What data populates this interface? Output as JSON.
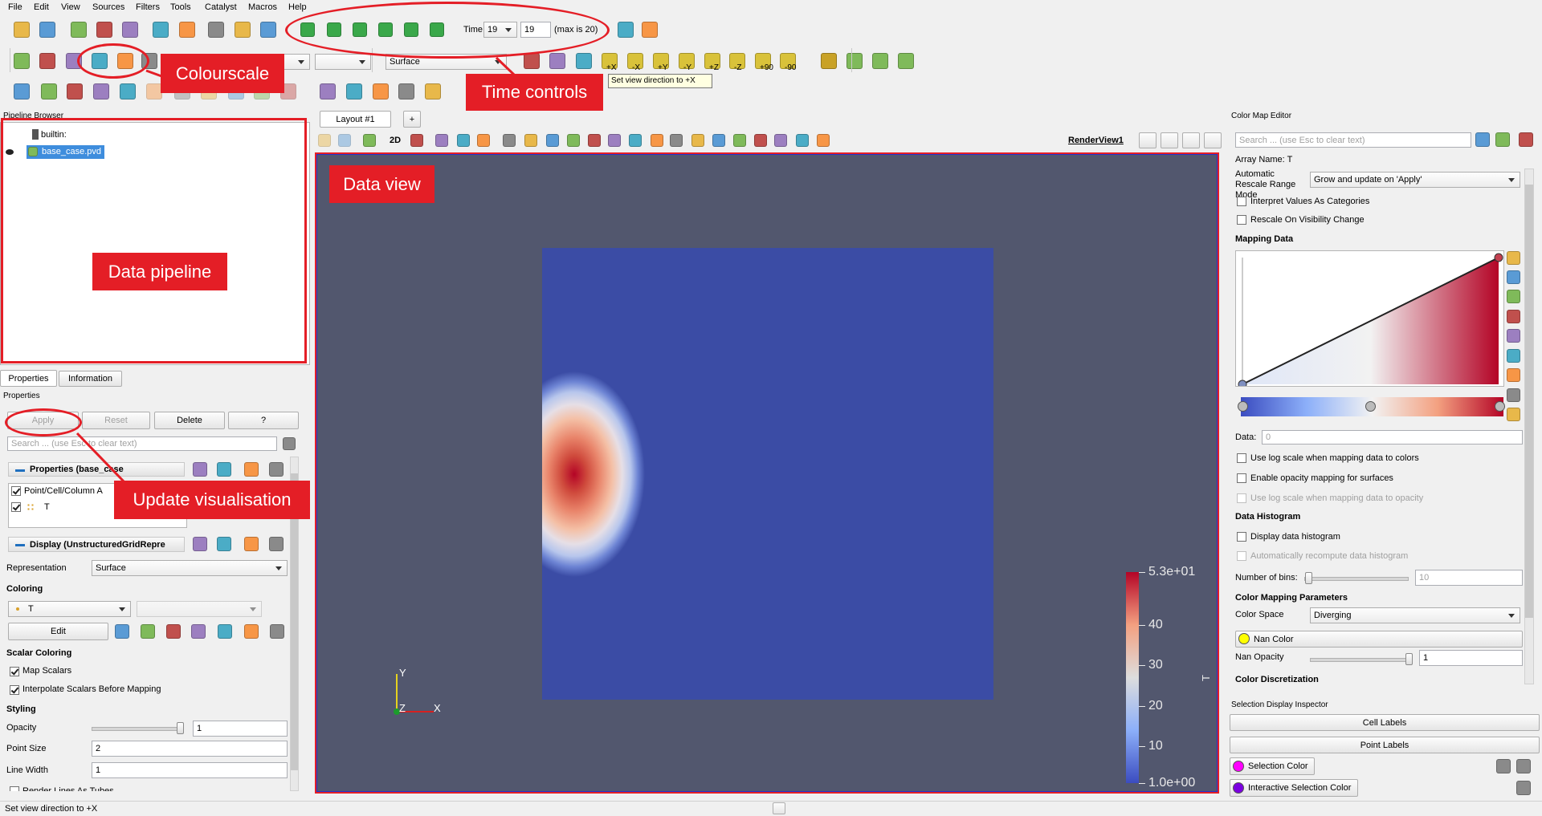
{
  "menu": [
    "File",
    "Edit",
    "View",
    "Sources",
    "Filters",
    "Tools",
    "Catalyst",
    "Macros",
    "Help"
  ],
  "toolbar": {
    "time_label": "Time:",
    "time_index": "19",
    "time_value": "19",
    "time_max": "(max is 20)",
    "representation": "Surface",
    "view_directions": [
      "+X",
      "-X",
      "+Y",
      "-Y",
      "+Z",
      "-Z",
      "+90",
      "-90"
    ],
    "tooltip": "Set view direction to +X"
  },
  "annotations": {
    "colourscale": "Colourscale",
    "time_controls": "Time controls",
    "data_view": "Data view",
    "data_pipeline": "Data pipeline",
    "update": "Update visualisation"
  },
  "pipeline_browser": {
    "title": "Pipeline Browser",
    "items": [
      "builtin:",
      "base_case.pvd"
    ]
  },
  "panel_tabs": [
    "Properties",
    "Information"
  ],
  "properties": {
    "title": "Properties",
    "buttons": [
      "Apply",
      "Reset",
      "Delete",
      "?"
    ],
    "search": "Search ... (use Esc to clear text)",
    "section": "Properties (base_case",
    "arrays_header": "Point/Cell/Column A",
    "array": "T",
    "display_section": "Display (UnstructuredGridRepre",
    "representation_label": "Representation",
    "representation": "Surface",
    "coloring_label": "Coloring",
    "coloring": "T",
    "edit": "Edit",
    "scalar_coloring": "Scalar Coloring",
    "map_scalars": "Map Scalars",
    "interpolate": "Interpolate Scalars Before Mapping",
    "styling": "Styling",
    "fields": [
      {
        "label": "Opacity",
        "value": "1"
      },
      {
        "label": "Point Size",
        "value": "2"
      },
      {
        "label": "Line Width",
        "value": "1"
      }
    ],
    "render_lines": "Render Lines As Tubes"
  },
  "layout": {
    "tab": "Layout #1",
    "add": "+",
    "mode": "2D",
    "view": "RenderView1"
  },
  "render_view": {
    "axes": {
      "y": "Y",
      "z": "Z",
      "x": "X"
    },
    "colorbar": {
      "title": "T",
      "range": [
        1,
        53
      ],
      "ticks": [
        {
          "value": 53,
          "label": "5.3e+01"
        },
        40,
        30,
        20,
        10,
        {
          "value": 1,
          "label": "1.0e+00"
        }
      ]
    }
  },
  "color_map_editor": {
    "title": "Color Map Editor",
    "search": "Search ... (use Esc to clear text)",
    "array_name": "Array Name: T",
    "rescale_label": "Automatic Rescale Range Mode",
    "rescale_mode": "Grow and update on 'Apply'",
    "interpret": "Interpret Values As Categories",
    "rescale_visibility": "Rescale On Visibility Change",
    "mapping_data": "Mapping Data",
    "data_label": "Data:",
    "data_value": "0",
    "log_colors": "Use log scale when mapping data to colors",
    "opacity_mapping": "Enable opacity mapping for surfaces",
    "log_opacity": "Use log scale when mapping data to opacity",
    "histogram": "Data Histogram",
    "display_histogram": "Display data histogram",
    "auto_histogram": "Automatically recompute data histogram",
    "bins_label": "Number of bins:",
    "bins": "10",
    "parameters": "Color Mapping Parameters",
    "space_label": "Color Space",
    "space": "Diverging",
    "nan_color": "Nan Color",
    "nan_opacity_label": "Nan Opacity",
    "nan_opacity": "1",
    "discretization": "Color Discretization"
  },
  "selection_inspector": {
    "title": "Selection Display Inspector",
    "cell_labels": "Cell Labels",
    "point_labels": "Point Labels",
    "selection_color": "Selection Color",
    "interactive_color": "Interactive Selection Color"
  },
  "status_bar": "Set view direction to +X"
}
